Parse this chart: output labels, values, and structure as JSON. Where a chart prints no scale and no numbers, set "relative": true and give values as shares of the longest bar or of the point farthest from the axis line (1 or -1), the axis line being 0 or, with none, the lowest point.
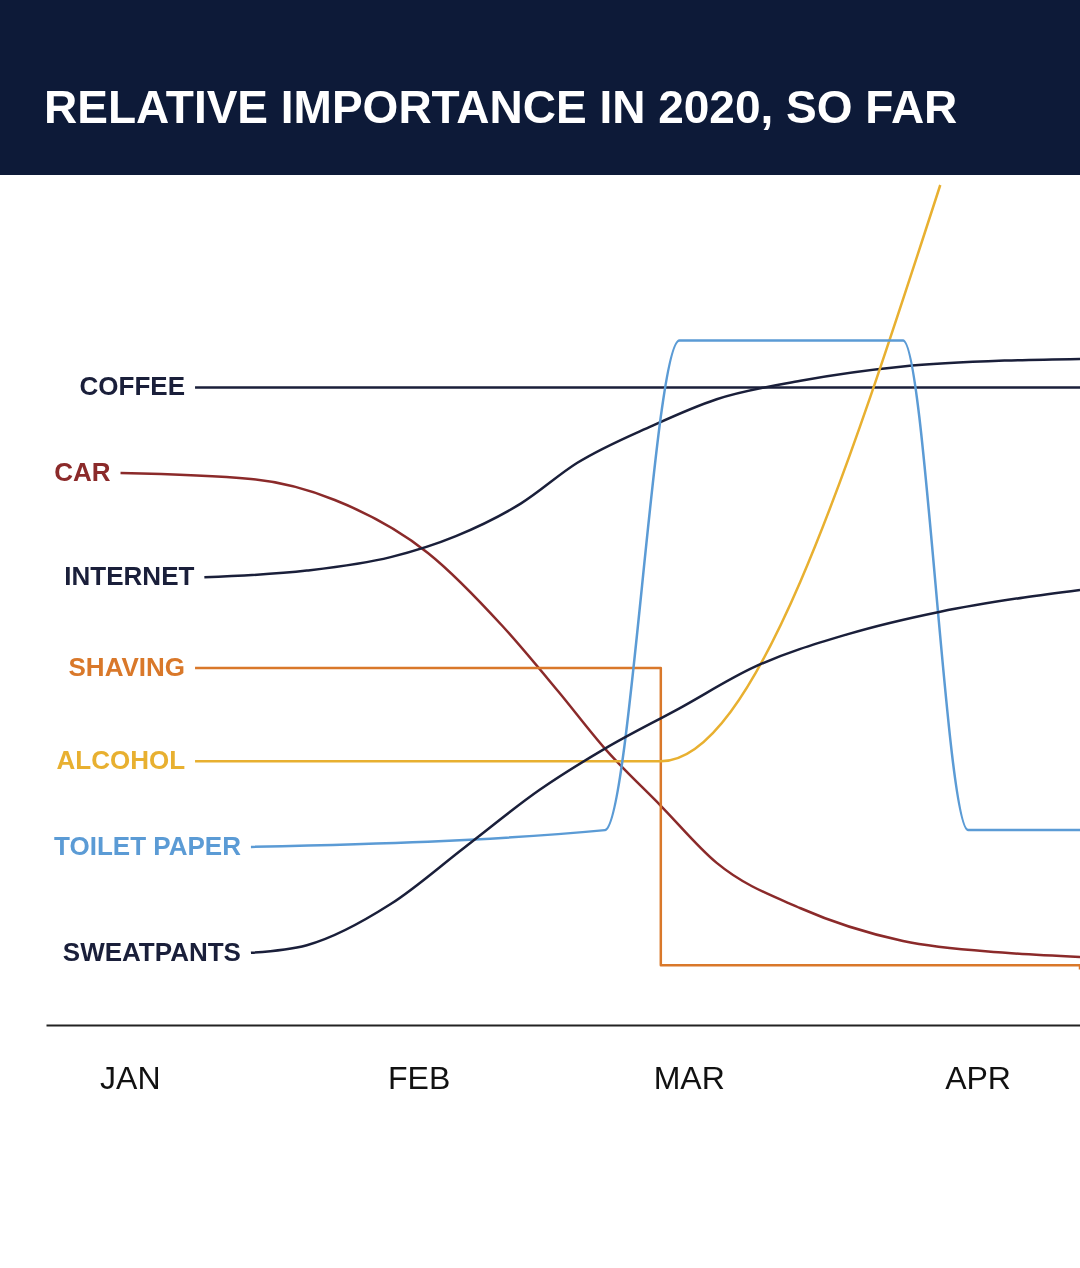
{
  "chart_data": {
    "type": "line",
    "title": "RELATIVE IMPORTANCE IN 2020, SO FAR",
    "relative": true,
    "grid": false,
    "xlim": [
      "2019-12-23",
      "2020-04-12"
    ],
    "xticks": [
      {
        "value": "2020-01-01",
        "label": "JAN"
      },
      {
        "value": "2020-02-01",
        "label": "FEB"
      },
      {
        "value": "2020-03-01",
        "label": "MAR"
      },
      {
        "value": "2020-04-01",
        "label": "APR"
      }
    ],
    "series": [
      {
        "name": "COFFEE",
        "color": "#1a1f3a",
        "x": [
          "2020-01-08",
          "2020-04-12"
        ],
        "values": [
          0.759,
          0.759
        ]
      },
      {
        "name": "CAR",
        "color": "#8b2a2a",
        "x": [
          "2019-12-31",
          "2020-01-14",
          "2020-01-23",
          "2020-02-02",
          "2020-02-10",
          "2020-02-16",
          "2020-02-21",
          "2020-02-27",
          "2020-03-04",
          "2020-03-13",
          "2020-03-24",
          "2020-04-04",
          "2020-04-12"
        ],
        "values": [
          0.657,
          0.65,
          0.625,
          0.562,
          0.475,
          0.397,
          0.329,
          0.261,
          0.193,
          0.139,
          0.1,
          0.086,
          0.081
        ]
      },
      {
        "name": "INTERNET",
        "color": "#1a1f3a",
        "x": [
          "2020-01-09",
          "2020-01-20",
          "2020-01-29",
          "2020-02-05",
          "2020-02-12",
          "2020-02-18",
          "2020-02-26",
          "2020-03-04",
          "2020-03-13",
          "2020-03-24",
          "2020-04-04",
          "2020-04-12"
        ],
        "values": [
          0.533,
          0.541,
          0.557,
          0.582,
          0.621,
          0.669,
          0.713,
          0.745,
          0.767,
          0.784,
          0.791,
          0.793
        ]
      },
      {
        "name": "SHAVING",
        "color": "#d9782a",
        "type": "step",
        "x": [
          "2020-01-08",
          "2020-02-27",
          "2020-04-12"
        ],
        "values": [
          0.425,
          0.071,
          0.066
        ]
      },
      {
        "name": "ALCOHOL",
        "color": "#e8b030",
        "x": [
          "2020-01-08",
          "2020-02-27",
          "2020-03-28"
        ],
        "values": [
          0.314,
          0.314,
          1
        ]
      },
      {
        "name": "TOILET PAPER",
        "color": "#5b9bd5",
        "x": [
          "2020-01-14",
          "2020-02-21",
          "2020-02-29",
          "2020-03-24",
          "2020-03-31",
          "2020-04-12"
        ],
        "values": [
          0.212,
          0.232,
          0.815,
          0.815,
          0.232,
          0.232
        ]
      },
      {
        "name": "SWEATPANTS",
        "color": "#1a1f3a",
        "x": [
          "2020-01-14",
          "2020-01-20",
          "2020-01-29",
          "2020-02-06",
          "2020-02-14",
          "2020-02-21",
          "2020-02-29",
          "2020-03-08",
          "2020-03-18",
          "2020-03-28",
          "2020-04-06",
          "2020-04-12"
        ],
        "values": [
          0.086,
          0.095,
          0.144,
          0.212,
          0.28,
          0.329,
          0.377,
          0.426,
          0.465,
          0.492,
          0.509,
          0.518
        ]
      }
    ]
  }
}
